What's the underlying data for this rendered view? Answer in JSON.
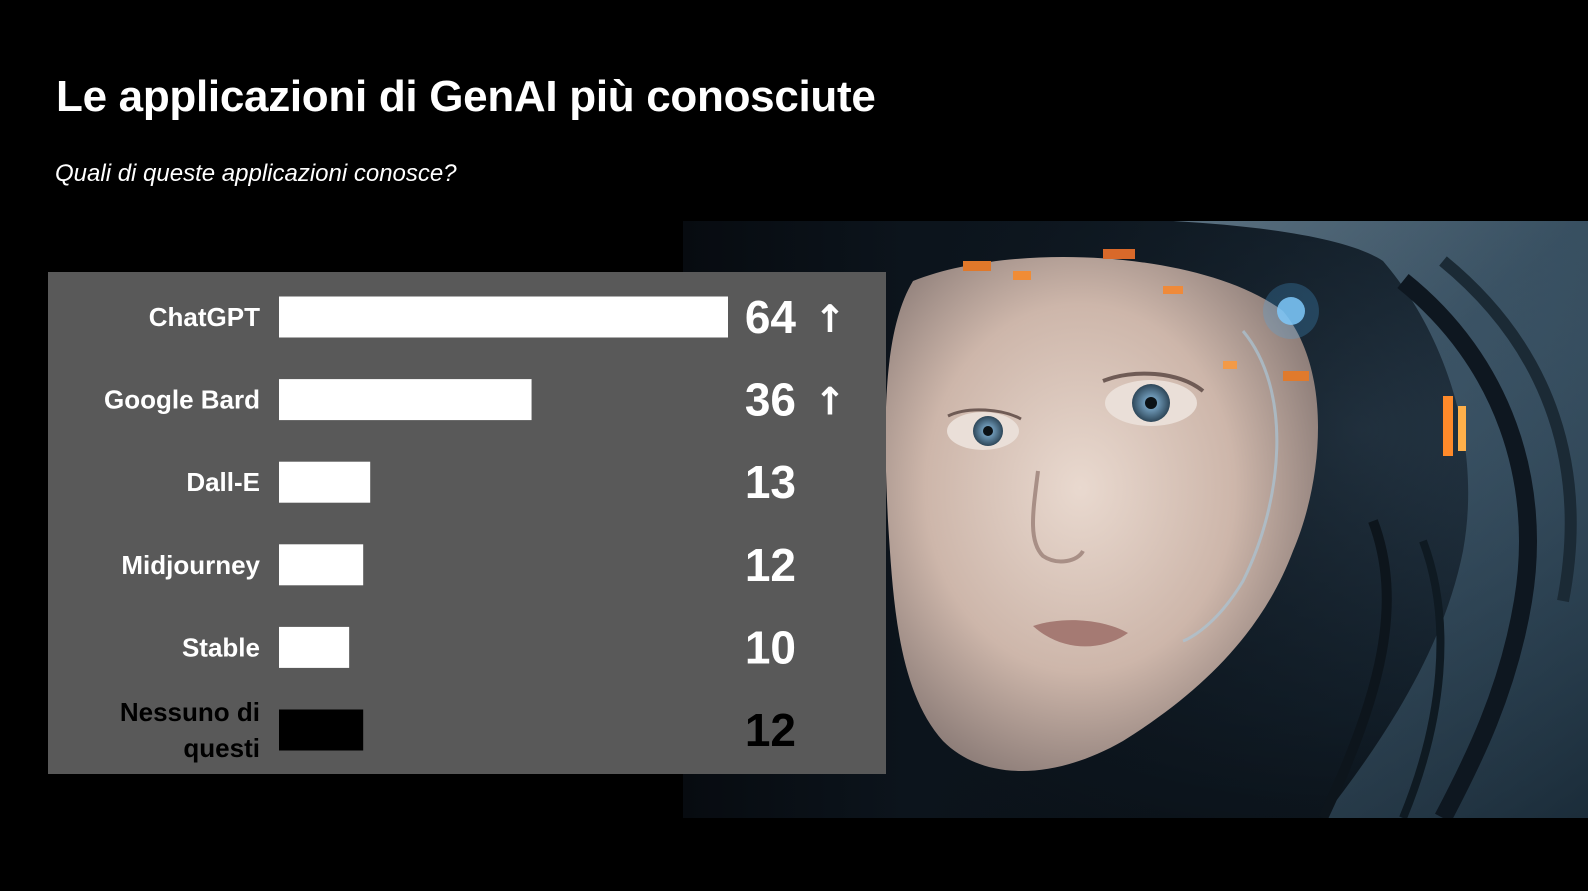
{
  "header": {
    "title": "Le applicazioni di GenAI più conosciute",
    "subtitle": "Quali di queste applicazioni conosce?"
  },
  "image": {
    "icon": "android-portrait-image"
  },
  "colors": {
    "background": "#000000",
    "panel": "#595959",
    "bar": "#ffffff",
    "bar_none": "#000000",
    "label": "#ffffff",
    "label_none": "#000000"
  },
  "chart_data": {
    "type": "bar",
    "orientation": "horizontal",
    "title": "",
    "xlabel": "",
    "ylabel": "",
    "categories": [
      "ChatGPT",
      "Google Bard",
      "Dall-E",
      "Midjourney",
      "Stable",
      "Nessuno di questi"
    ],
    "values": [
      64,
      36,
      13,
      12,
      10,
      12
    ],
    "data_labels": [
      "64",
      "36",
      "13",
      "12",
      "10",
      "12"
    ],
    "trend": [
      "↑",
      "↑",
      "",
      "",
      "",
      ""
    ],
    "trend_icon": "up-arrow-icon",
    "xlim": [
      0,
      64
    ],
    "grid": false,
    "legend": "none"
  }
}
